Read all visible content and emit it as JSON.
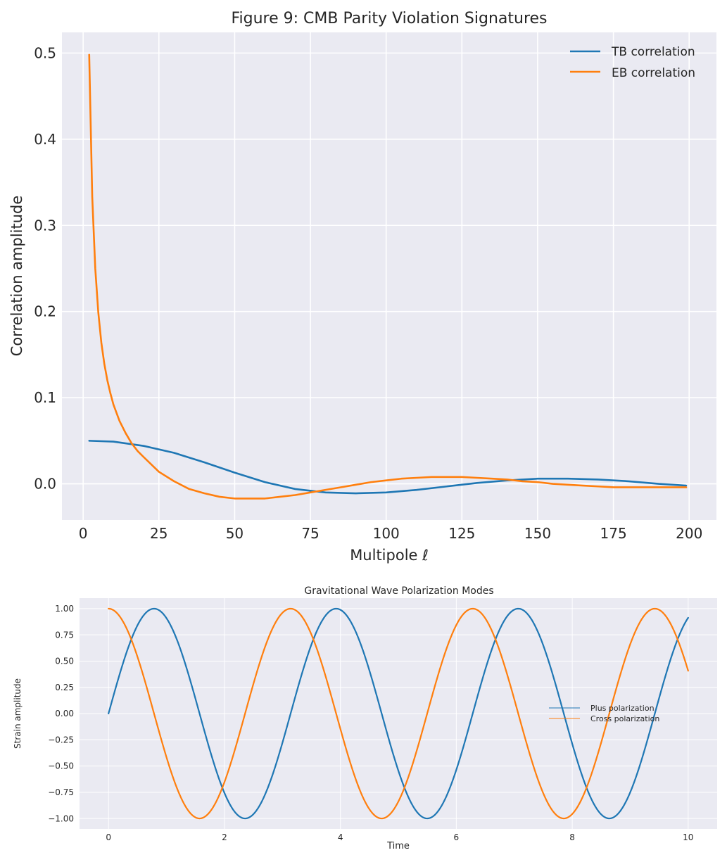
{
  "chart_data": [
    {
      "type": "line",
      "title": "Figure 9: CMB Parity Violation Signatures",
      "xlabel": "Multipole ℓ",
      "ylabel": "Correlation amplitude",
      "xlim": [
        -7,
        209
      ],
      "ylim": [
        -0.042,
        0.524
      ],
      "xticks": [
        0,
        25,
        50,
        75,
        100,
        125,
        150,
        175,
        200
      ],
      "xtick_labels": [
        "0",
        "25",
        "50",
        "75",
        "100",
        "125",
        "150",
        "175",
        "200"
      ],
      "yticks": [
        0.0,
        0.1,
        0.2,
        0.3,
        0.4,
        0.5
      ],
      "ytick_labels": [
        "0.0",
        "0.1",
        "0.2",
        "0.3",
        "0.4",
        "0.5"
      ],
      "grid": true,
      "legend_position": "upper right",
      "series": [
        {
          "name": "TB correlation",
          "color": "#1f77b4",
          "x": [
            2,
            10,
            20,
            30,
            40,
            50,
            60,
            70,
            80,
            90,
            100,
            110,
            120,
            130,
            140,
            150,
            160,
            170,
            180,
            190,
            199
          ],
          "y": [
            0.05,
            0.049,
            0.044,
            0.036,
            0.025,
            0.013,
            0.002,
            -0.006,
            -0.01,
            -0.011,
            -0.01,
            -0.007,
            -0.003,
            0.001,
            0.004,
            0.006,
            0.006,
            0.005,
            0.003,
            0.0,
            -0.002
          ]
        },
        {
          "name": "EB correlation",
          "color": "#ff7f0e",
          "x": [
            2,
            3,
            4,
            5,
            6,
            7,
            8,
            9,
            10,
            12,
            14,
            16,
            18,
            20,
            25,
            30,
            35,
            40,
            45,
            50,
            55,
            60,
            65,
            70,
            75,
            80,
            85,
            90,
            95,
            100,
            105,
            110,
            115,
            120,
            125,
            130,
            135,
            140,
            145,
            150,
            155,
            160,
            165,
            170,
            175,
            180,
            185,
            190,
            195,
            199
          ],
          "y": [
            0.498,
            0.333,
            0.25,
            0.199,
            0.164,
            0.139,
            0.12,
            0.105,
            0.092,
            0.073,
            0.059,
            0.047,
            0.038,
            0.031,
            0.014,
            0.003,
            -0.006,
            -0.011,
            -0.015,
            -0.017,
            -0.017,
            -0.017,
            -0.015,
            -0.013,
            -0.01,
            -0.007,
            -0.004,
            -0.001,
            0.002,
            0.004,
            0.006,
            0.007,
            0.008,
            0.008,
            0.008,
            0.007,
            0.006,
            0.005,
            0.003,
            0.002,
            0.0,
            -0.001,
            -0.002,
            -0.003,
            -0.004,
            -0.004,
            -0.004,
            -0.004,
            -0.004,
            -0.004
          ]
        }
      ]
    },
    {
      "type": "line",
      "title": "Gravitational Wave Polarization Modes",
      "xlabel": "Time",
      "ylabel": "Strain amplitude",
      "xlim": [
        -0.5,
        10.5
      ],
      "ylim": [
        -1.1,
        1.1
      ],
      "xticks": [
        0,
        2,
        4,
        6,
        8,
        10
      ],
      "xtick_labels": [
        "0",
        "2",
        "4",
        "6",
        "8",
        "10"
      ],
      "yticks": [
        1.0,
        0.75,
        0.5,
        0.25,
        0.0,
        -0.25,
        -0.5,
        -0.75,
        -1.0
      ],
      "ytick_labels": [
        "1.00",
        "0.75",
        "0.50",
        "0.25",
        "0.00",
        "−0.25",
        "−0.50",
        "−0.75",
        "−1.00"
      ],
      "grid": true,
      "legend_position": "center right",
      "series": [
        {
          "name": "Plus polarization",
          "color": "#1f77b4",
          "function": "sin(2*t)",
          "x": [
            0,
            0.25,
            0.5,
            0.75,
            1.0,
            1.25,
            1.5,
            1.75,
            2.0,
            2.25,
            2.5,
            2.75,
            3.0,
            3.25,
            3.5,
            3.75,
            4.0,
            4.25,
            4.5,
            4.75,
            5.0,
            5.25,
            5.5,
            5.75,
            6.0,
            6.25,
            6.5,
            6.75,
            7.0,
            7.25,
            7.5,
            7.75,
            8.0,
            8.25,
            8.5,
            8.75,
            9.0,
            9.25,
            9.5,
            9.75,
            10.0
          ],
          "y": [
            0.0,
            0.479,
            0.841,
            0.997,
            0.909,
            0.598,
            0.141,
            -0.351,
            -0.757,
            -0.978,
            -0.959,
            -0.706,
            -0.279,
            0.215,
            0.657,
            0.938,
            0.989,
            0.798,
            0.412,
            -0.075,
            -0.544,
            -0.88,
            -1.0,
            -0.875,
            -0.537,
            -0.066,
            0.42,
            0.804,
            0.991,
            0.935,
            0.65,
            0.206,
            -0.288,
            -0.712,
            -0.961,
            -0.976,
            -0.751,
            -0.343,
            0.15,
            0.605,
            0.913
          ]
        },
        {
          "name": "Cross polarization",
          "color": "#ff7f0e",
          "function": "cos(2*t)",
          "x": [
            0,
            0.25,
            0.5,
            0.75,
            1.0,
            1.25,
            1.5,
            1.75,
            2.0,
            2.25,
            2.5,
            2.75,
            3.0,
            3.25,
            3.5,
            3.75,
            4.0,
            4.25,
            4.5,
            4.75,
            5.0,
            5.25,
            5.5,
            5.75,
            6.0,
            6.25,
            6.5,
            6.75,
            7.0,
            7.25,
            7.5,
            7.75,
            8.0,
            8.25,
            8.5,
            8.75,
            9.0,
            9.25,
            9.5,
            9.75,
            10.0
          ],
          "y": [
            1.0,
            0.878,
            0.54,
            0.071,
            -0.416,
            -0.801,
            -0.99,
            -0.937,
            -0.654,
            -0.211,
            0.284,
            0.709,
            0.96,
            0.977,
            0.754,
            0.347,
            -0.146,
            -0.602,
            -0.911,
            -0.997,
            -0.839,
            -0.475,
            0.004,
            0.483,
            0.844,
            0.998,
            0.907,
            0.595,
            0.137,
            -0.355,
            -0.76,
            -0.979,
            -0.958,
            -0.702,
            -0.275,
            0.219,
            0.66,
            0.939,
            0.989,
            0.796,
            0.408
          ]
        }
      ]
    }
  ]
}
